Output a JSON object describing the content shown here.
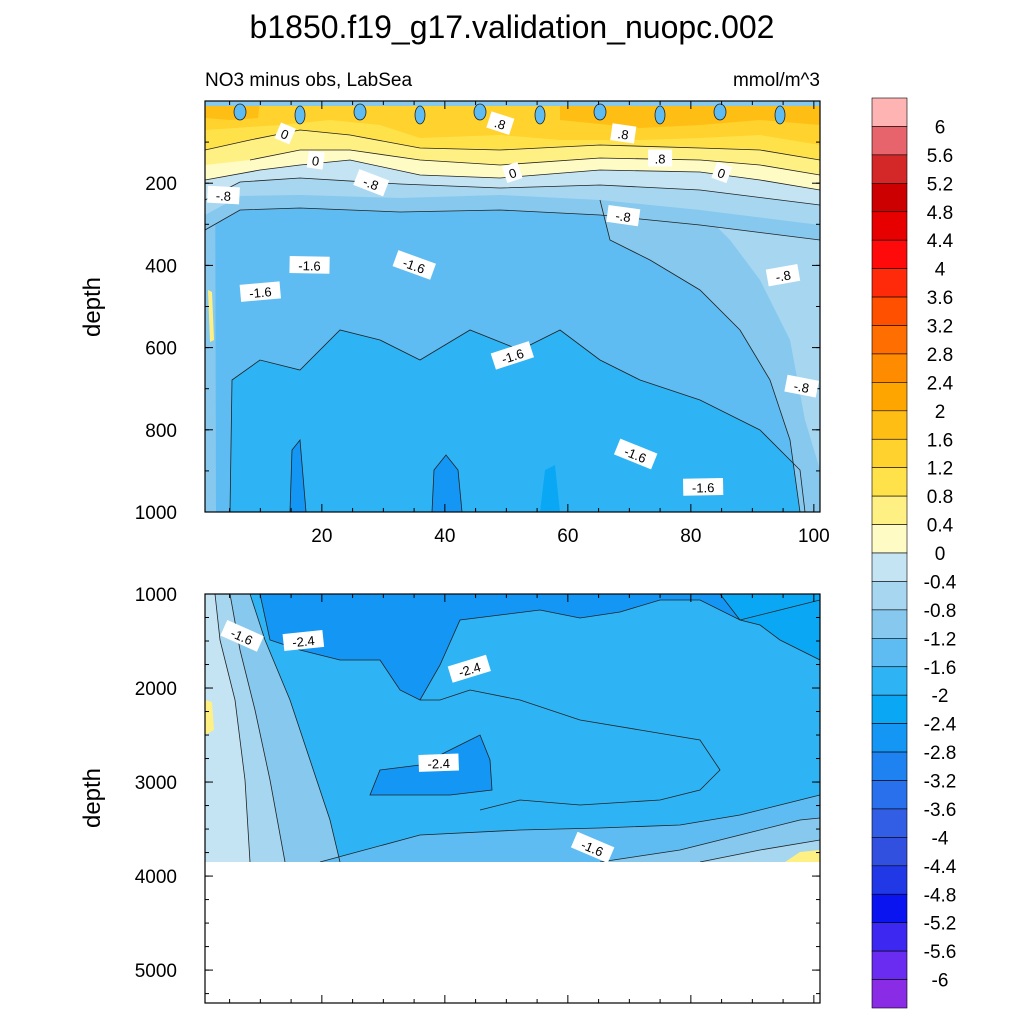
{
  "chart_data": [
    {
      "type": "contour",
      "title": "b1850.f19_g17.validation_nuopc.002",
      "left_subtitle": "NO3 minus obs, LabSea",
      "right_subtitle": "mmol/m^3",
      "ylabel": "depth",
      "xlabel": "",
      "xlim": [
        1,
        101
      ],
      "ylim": [
        1000,
        0
      ],
      "xticks": [
        "20",
        "40",
        "60",
        "80",
        "100"
      ],
      "yticks": [
        "200",
        "400",
        "600",
        "800",
        "1000"
      ],
      "contour_labels": [
        {
          "text": "0",
          "x": 14,
          "y": 80
        },
        {
          "text": ".8",
          "x": 49,
          "y": 55
        },
        {
          "text": ".8",
          "x": 69,
          "y": 80
        },
        {
          "text": ".8",
          "x": 75,
          "y": 140
        },
        {
          "text": "0",
          "x": 19,
          "y": 145
        },
        {
          "text": "0",
          "x": 51,
          "y": 175
        },
        {
          "text": "0",
          "x": 85,
          "y": 175
        },
        {
          "text": "-.8",
          "x": 4,
          "y": 230
        },
        {
          "text": "-.8",
          "x": 28,
          "y": 200
        },
        {
          "text": "-.8",
          "x": 69,
          "y": 280
        },
        {
          "text": "-1.6",
          "x": 18,
          "y": 400
        },
        {
          "text": "-1.6",
          "x": 35,
          "y": 400
        },
        {
          "text": "-1.6",
          "x": 10,
          "y": 465
        },
        {
          "text": "-.8",
          "x": 95,
          "y": 425
        },
        {
          "text": "-1.6",
          "x": 51,
          "y": 620
        },
        {
          "text": "-.8",
          "x": 98,
          "y": 695
        },
        {
          "text": "-1.6",
          "x": 71,
          "y": 860
        },
        {
          "text": "-1.6",
          "x": 82,
          "y": 940
        }
      ]
    },
    {
      "type": "contour",
      "ylabel": "depth",
      "xlim": [
        1,
        101
      ],
      "ylim": [
        5350,
        1000
      ],
      "yticks": [
        "1000",
        "2000",
        "3000",
        "4000",
        "5000"
      ],
      "data_bottom_depth": 3900,
      "contour_labels": [
        {
          "text": "-1.6",
          "x": 7,
          "y": 1450
        },
        {
          "text": "-2.4",
          "x": 17,
          "y": 1500
        },
        {
          "text": "-2.4",
          "x": 44,
          "y": 1800
        },
        {
          "text": "-2.4",
          "x": 39,
          "y": 2800
        },
        {
          "text": "-1.6",
          "x": 64,
          "y": 3700
        }
      ]
    }
  ],
  "colorbar": {
    "labels": [
      "6",
      "5.6",
      "5.2",
      "4.8",
      "4.4",
      "4",
      "3.6",
      "3.2",
      "2.8",
      "2.4",
      "2",
      "1.6",
      "1.2",
      "0.8",
      "0.4",
      "0",
      "-0.4",
      "-0.8",
      "-1.2",
      "-1.6",
      "-2",
      "-2.4",
      "-2.8",
      "-3.2",
      "-3.6",
      "-4",
      "-4.4",
      "-4.8",
      "-5.2",
      "-5.6",
      "-6"
    ],
    "colors": [
      "#ffb4b4",
      "#e8646c",
      "#d42828",
      "#cc0000",
      "#e60000",
      "#ff0a0a",
      "#ff2a0a",
      "#ff5000",
      "#ff6e00",
      "#ff8c00",
      "#ffa500",
      "#ffbe14",
      "#ffd22d",
      "#ffe24a",
      "#fff084",
      "#fffbc4",
      "#c4e4f4",
      "#a6d6f0",
      "#86c8ee",
      "#5ebcf2",
      "#2eb4f4",
      "#0aa8f4",
      "#1496f4",
      "#1e82f0",
      "#2870ec",
      "#325ee6",
      "#3250e0",
      "#2038e6",
      "#0a14f0",
      "#3c28f0",
      "#6a2cf0",
      "#8a2ce6"
    ]
  }
}
